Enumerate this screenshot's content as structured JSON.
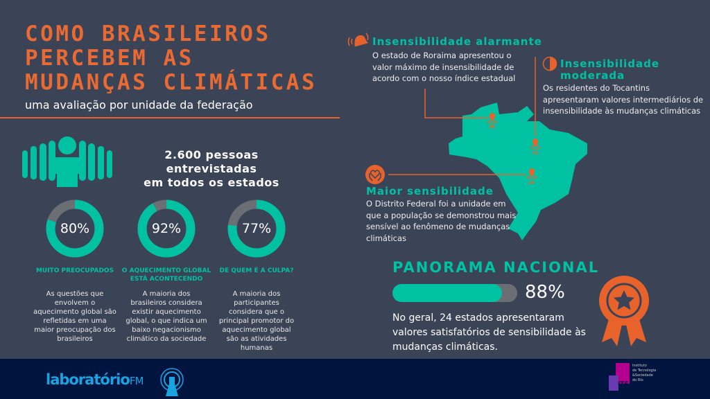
{
  "header": {
    "title_lines": [
      "COMO BRASILEIROS",
      "PERCEBEM AS",
      "MUDANÇAS CLIMÁTICAS"
    ],
    "subtitle": "uma avaliação por unidade da federação"
  },
  "survey": {
    "line1": "2.600 pessoas entrevistadas",
    "line2": "em todos os estados",
    "icon": "people-crowd-icon"
  },
  "stats": [
    {
      "value": 80,
      "value_label": "80%",
      "label_lines": [
        "MUITO PREOCUPADOS"
      ],
      "description": [
        "As questões que",
        "envolvem o",
        "aquecimento global são",
        "refletidas em uma",
        "maior preocupação dos",
        "brasileiros"
      ]
    },
    {
      "value": 92,
      "value_label": "92%",
      "label_lines": [
        "O AQUECIMENTO GLOBAL",
        "ESTÁ ACONTECENDO"
      ],
      "description": [
        "A maioria dos",
        "brasileiros considera",
        "existir aquecimento",
        "global, o que indica um",
        "baixo negacionismo",
        "climático da sociedade"
      ]
    },
    {
      "value": 77,
      "value_label": "77%",
      "label_lines": [
        "DE QUEM É A CULPA?"
      ],
      "description": [
        "A maioria dos",
        "participantes",
        "considera que o",
        "principal promotor do",
        "aquecimento global",
        "são as atividades",
        "humanas"
      ]
    }
  ],
  "callouts": {
    "alarmante": {
      "title": "Insensibilidade alarmante",
      "text": [
        "O estado de Roraima apresentou o",
        "valor máximo de insensibilidade de",
        "acordo com o nosso índice estadual"
      ],
      "icon": "bell-icon"
    },
    "moderada": {
      "title_lines": [
        "Insensibilidade",
        "moderada"
      ],
      "text": [
        "Os residentes do Tocantins",
        "apresentaram valores intermediários de",
        "insensibilidade às mudanças climáticas"
      ],
      "icon": "half-circle-icon"
    },
    "maior": {
      "title": "Maior sensibilidade",
      "text": [
        "O Distrito Federal foi a unidade em",
        "que a população se demonstrou mais",
        "sensível ao fenômeno de mudanças",
        "climáticas"
      ],
      "icon": "hands-heart-icon"
    }
  },
  "map": {
    "pins": [
      "RR",
      "TO",
      "DF"
    ]
  },
  "panorama": {
    "title": "PANORAMA NACIONAL",
    "value": 88,
    "value_label": "88%",
    "text": [
      "No geral, 24 estados apresentaram",
      "valores satisfatórios de sensibilidade às",
      "mudanças climáticas."
    ],
    "icon": "award-medal-icon"
  },
  "footer": {
    "logo_left": "laboratório",
    "logo_left_suffix": "FM",
    "logo_right_mark": "ITS",
    "logo_right_text": [
      "Instituto",
      "de Tecnologia",
      "&Sociedade",
      "do Rio"
    ]
  },
  "colors": {
    "background": "#3b4357",
    "accent": "#00c2a2",
    "orange": "#e8632b",
    "footer": "#001440",
    "ring_track": "#6b6e73"
  }
}
